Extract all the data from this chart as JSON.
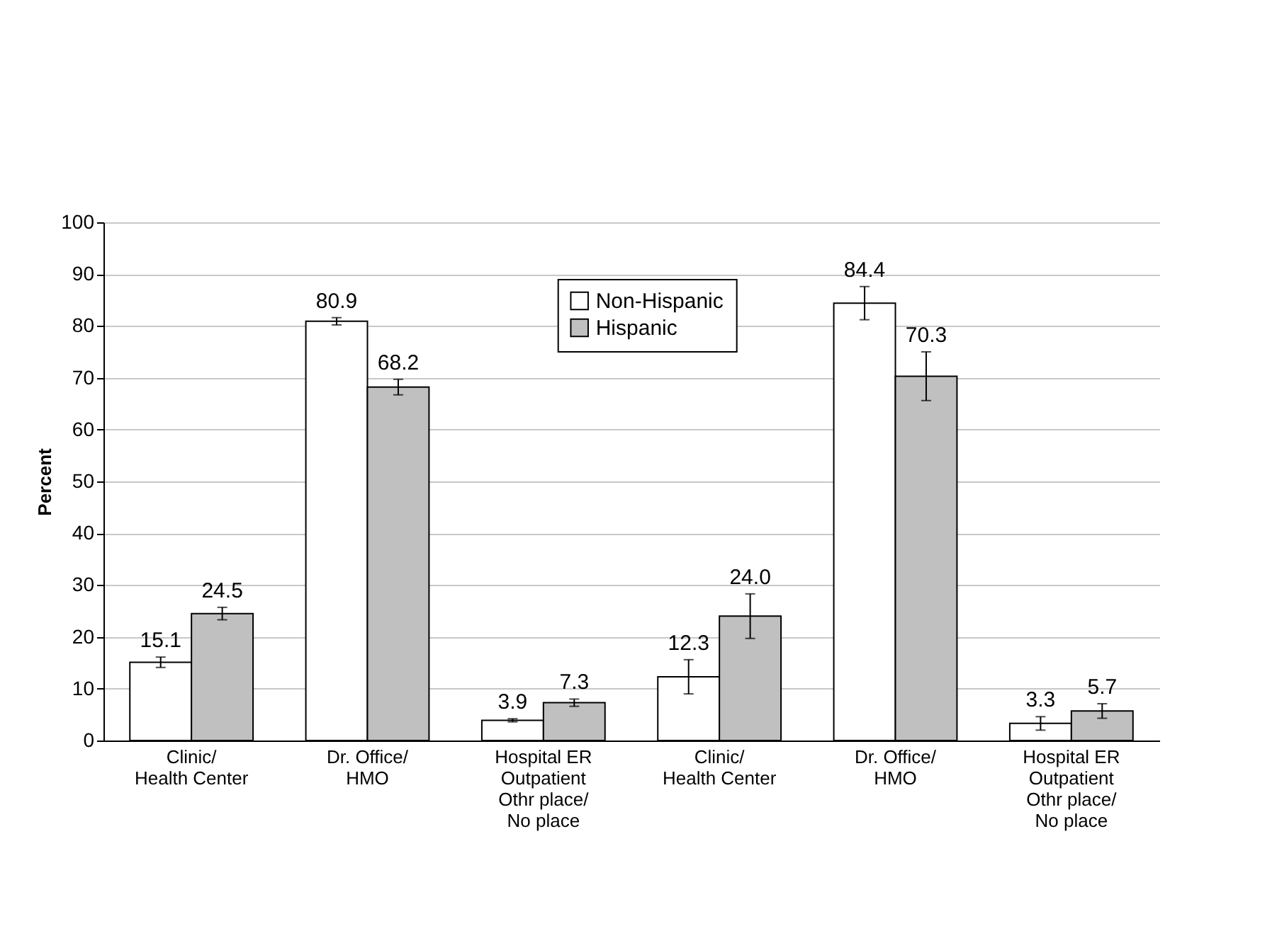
{
  "chart_data": {
    "type": "bar",
    "ylabel": "Percent",
    "categories": [
      "Clinic/\nHealth Center",
      "Dr. Office/\nHMO",
      "Hospital ER\nOutpatient\nOthr place/\nNo place",
      "Clinic/\nHealth Center",
      "Dr. Office/\nHMO",
      "Hospital ER\nOutpatient\nOthr place/\nNo place"
    ],
    "series": [
      {
        "name": "Non-Hispanic",
        "color": "#ffffff",
        "values": [
          15.1,
          80.9,
          3.9,
          12.3,
          84.4,
          3.3
        ],
        "errors": [
          1.0,
          0.7,
          0.3,
          3.3,
          3.2,
          1.3
        ],
        "value_labels": [
          "15.1",
          "80.9",
          "3.9",
          "12.3",
          "84.4",
          "3.3"
        ]
      },
      {
        "name": "Hispanic",
        "color": "#c0c0c0",
        "values": [
          24.5,
          68.2,
          7.3,
          24.0,
          70.3,
          5.7
        ],
        "errors": [
          1.2,
          1.5,
          0.7,
          4.3,
          4.7,
          1.4
        ],
        "value_labels": [
          "24.5",
          "68.2",
          "7.3",
          "24.0",
          "70.3",
          "5.7"
        ]
      }
    ],
    "ylim": [
      0,
      100
    ],
    "yticks": [
      0,
      10,
      20,
      30,
      40,
      50,
      60,
      70,
      80,
      90,
      100
    ],
    "grid": "y",
    "legend": "top"
  }
}
